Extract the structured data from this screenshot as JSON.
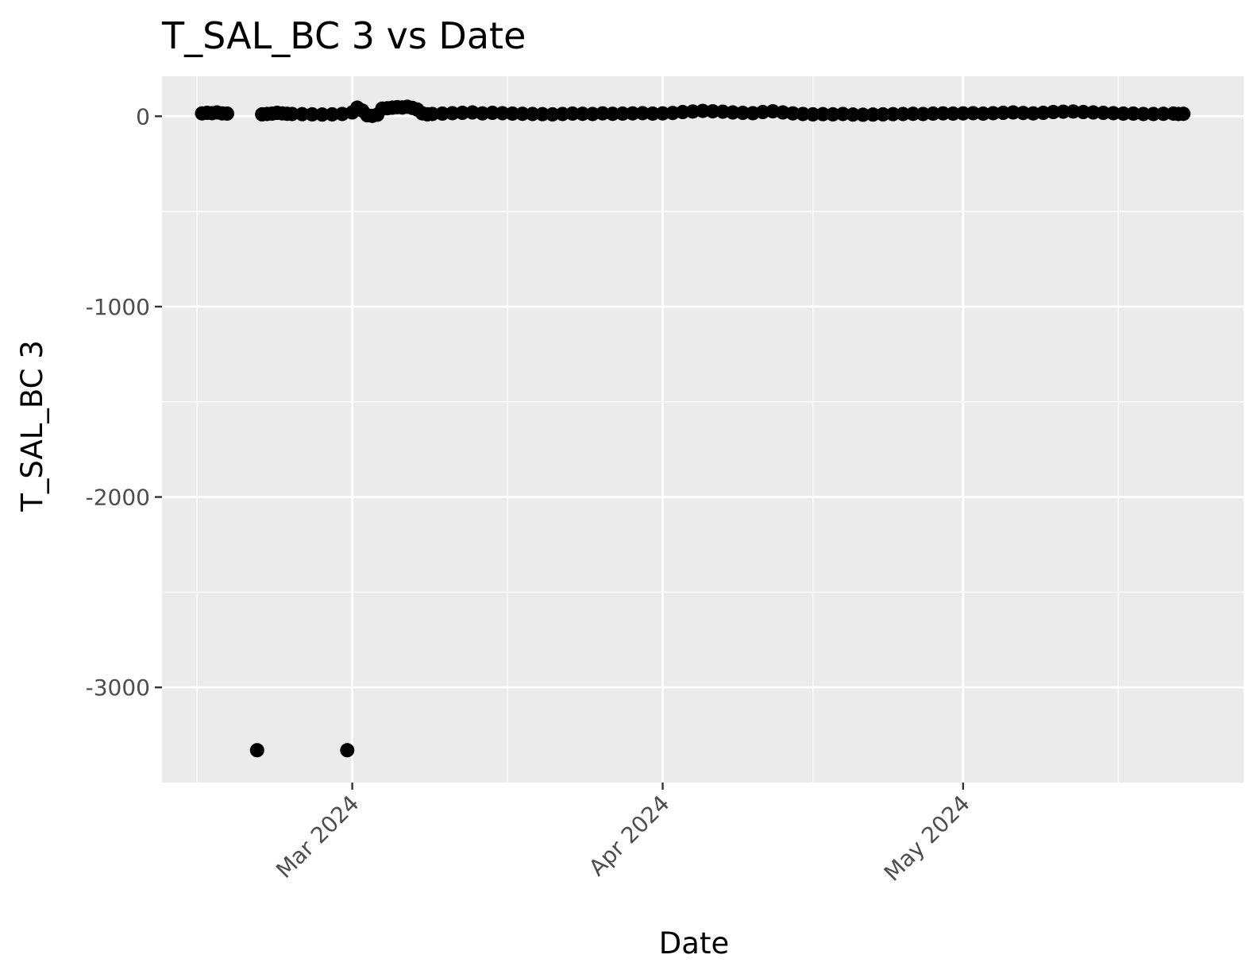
{
  "chart_data": {
    "type": "scatter",
    "title": "T_SAL_BC 3 vs Date",
    "xlabel": "Date",
    "ylabel": "T_SAL_BC 3",
    "colors": {
      "panel_background": "#ebebeb",
      "grid": "#ffffff",
      "points": "#000000",
      "tick_marks": "#333333",
      "tick_labels": "#4d4d4d"
    },
    "grid": true,
    "legend": "none",
    "xlim": [
      "2024-02-11",
      "2024-05-29"
    ],
    "ylim": [
      -3500,
      210
    ],
    "x_ticks": [
      {
        "value": "2024-03-01",
        "label": "Mar 2024"
      },
      {
        "value": "2024-04-01",
        "label": "Apr 2024"
      },
      {
        "value": "2024-05-01",
        "label": "May 2024"
      }
    ],
    "y_ticks": [
      {
        "value": 0,
        "label": "0"
      },
      {
        "value": -1000,
        "label": "-1000"
      },
      {
        "value": -2000,
        "label": "-2000"
      },
      {
        "value": -3000,
        "label": "-3000"
      }
    ],
    "series": [
      {
        "points": [
          [
            "2024-02-15",
            15
          ],
          [
            "2024-02-15T12:00",
            18
          ],
          [
            "2024-02-16",
            16
          ],
          [
            "2024-02-16T12:00",
            20
          ],
          [
            "2024-02-17",
            15
          ],
          [
            "2024-02-17T12:00",
            14
          ],
          [
            "2024-02-21",
            10
          ],
          [
            "2024-02-21T12:00",
            12
          ],
          [
            "2024-02-22",
            14
          ],
          [
            "2024-02-22T12:00",
            18
          ],
          [
            "2024-02-23",
            15
          ],
          [
            "2024-02-23T12:00",
            13
          ],
          [
            "2024-02-24",
            12
          ],
          [
            "2024-02-25",
            11
          ],
          [
            "2024-02-26",
            10
          ],
          [
            "2024-02-27",
            9
          ],
          [
            "2024-02-28",
            10
          ],
          [
            "2024-02-29",
            12
          ],
          [
            "2024-03-01",
            20
          ],
          [
            "2024-03-01T12:00",
            45
          ],
          [
            "2024-03-02",
            30
          ],
          [
            "2024-03-02T12:00",
            5
          ],
          [
            "2024-03-03",
            2
          ],
          [
            "2024-03-03T12:00",
            8
          ],
          [
            "2024-03-04",
            40
          ],
          [
            "2024-03-04T12:00",
            42
          ],
          [
            "2024-03-05",
            45
          ],
          [
            "2024-03-05T12:00",
            48
          ],
          [
            "2024-03-06",
            46
          ],
          [
            "2024-03-06T12:00",
            50
          ],
          [
            "2024-03-07",
            44
          ],
          [
            "2024-03-07T12:00",
            35
          ],
          [
            "2024-03-08",
            15
          ],
          [
            "2024-03-08T12:00",
            10
          ],
          [
            "2024-03-09",
            12
          ],
          [
            "2024-03-10",
            14
          ],
          [
            "2024-03-11",
            16
          ],
          [
            "2024-03-12",
            18
          ],
          [
            "2024-03-13",
            20
          ],
          [
            "2024-03-14",
            15
          ],
          [
            "2024-03-15",
            18
          ],
          [
            "2024-03-16",
            16
          ],
          [
            "2024-03-17",
            14
          ],
          [
            "2024-03-18",
            13
          ],
          [
            "2024-03-19",
            12
          ],
          [
            "2024-03-20",
            11
          ],
          [
            "2024-03-21",
            10
          ],
          [
            "2024-03-22",
            12
          ],
          [
            "2024-03-23",
            14
          ],
          [
            "2024-03-24",
            13
          ],
          [
            "2024-03-25",
            12
          ],
          [
            "2024-03-26",
            15
          ],
          [
            "2024-03-27",
            13
          ],
          [
            "2024-03-28",
            14
          ],
          [
            "2024-03-29",
            15
          ],
          [
            "2024-03-30",
            16
          ],
          [
            "2024-03-31",
            14
          ],
          [
            "2024-04-01",
            15
          ],
          [
            "2024-04-02",
            17
          ],
          [
            "2024-04-03",
            22
          ],
          [
            "2024-04-04",
            25
          ],
          [
            "2024-04-05",
            28
          ],
          [
            "2024-04-06",
            26
          ],
          [
            "2024-04-07",
            24
          ],
          [
            "2024-04-08",
            20
          ],
          [
            "2024-04-09",
            18
          ],
          [
            "2024-04-10",
            16
          ],
          [
            "2024-04-11",
            22
          ],
          [
            "2024-04-12",
            26
          ],
          [
            "2024-04-13",
            20
          ],
          [
            "2024-04-14",
            15
          ],
          [
            "2024-04-15",
            12
          ],
          [
            "2024-04-16",
            10
          ],
          [
            "2024-04-17",
            11
          ],
          [
            "2024-04-18",
            10
          ],
          [
            "2024-04-19",
            12
          ],
          [
            "2024-04-20",
            9
          ],
          [
            "2024-04-21",
            8
          ],
          [
            "2024-04-22",
            9
          ],
          [
            "2024-04-23",
            10
          ],
          [
            "2024-04-24",
            11
          ],
          [
            "2024-04-25",
            12
          ],
          [
            "2024-04-26",
            13
          ],
          [
            "2024-04-27",
            12
          ],
          [
            "2024-04-28",
            14
          ],
          [
            "2024-04-29",
            15
          ],
          [
            "2024-04-30",
            14
          ],
          [
            "2024-05-01",
            15
          ],
          [
            "2024-05-02",
            16
          ],
          [
            "2024-05-03",
            14
          ],
          [
            "2024-05-04",
            16
          ],
          [
            "2024-05-05",
            18
          ],
          [
            "2024-05-06",
            20
          ],
          [
            "2024-05-07",
            17
          ],
          [
            "2024-05-08",
            15
          ],
          [
            "2024-05-09",
            18
          ],
          [
            "2024-05-10",
            22
          ],
          [
            "2024-05-11",
            24
          ],
          [
            "2024-05-12",
            25
          ],
          [
            "2024-05-13",
            22
          ],
          [
            "2024-05-14",
            20
          ],
          [
            "2024-05-15",
            18
          ],
          [
            "2024-05-16",
            16
          ],
          [
            "2024-05-17",
            14
          ],
          [
            "2024-05-18",
            14
          ],
          [
            "2024-05-19",
            12
          ],
          [
            "2024-05-20",
            12
          ],
          [
            "2024-05-21",
            13
          ],
          [
            "2024-05-22",
            14
          ],
          [
            "2024-05-22T12:00",
            12
          ],
          [
            "2024-05-23",
            13
          ],
          [
            "2024-02-20T12:00",
            -3330
          ],
          [
            "2024-02-29T12:00",
            -3330
          ]
        ]
      }
    ]
  }
}
